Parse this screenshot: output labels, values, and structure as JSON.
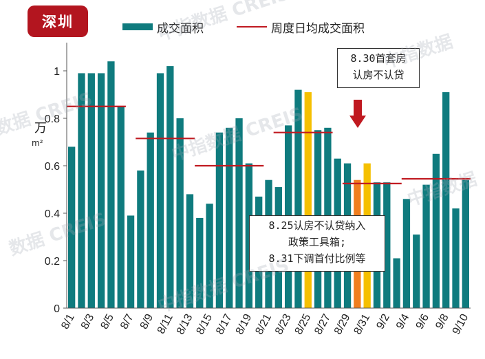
{
  "city_badge": "深圳",
  "legend": {
    "bar_label": "成交面积",
    "line_label": "周度日均成交面积"
  },
  "colors": {
    "bar": "#0f7b7e",
    "highlight": "#f5c000",
    "highlight_alt": "#f07e1e",
    "avg_line": "#c01920",
    "badge": "#b3151f",
    "arrow": "#c01920"
  },
  "callout_top": {
    "lines": [
      "8.30首套房",
      "认房不认贷"
    ]
  },
  "callout_mid": {
    "lines": [
      "8.25认房不认贷纳入",
      "政策工具箱;",
      "8.31下调首付比例等"
    ]
  },
  "watermarks": [
    "中指数据 CREIS",
    "中指数据 CREIS",
    "数据 CREIS",
    "中指数据",
    "中指数据 CREIS",
    "中指数据",
    "数据 CREIS"
  ],
  "chart_data": {
    "type": "bar",
    "ylabel_top": "万",
    "ylabel_unit": "m²",
    "ylim": [
      0,
      1.1
    ],
    "yticks": [
      "0",
      "0.2",
      "0.4",
      "0.6",
      "0.8",
      "1"
    ],
    "categories": [
      "8/1",
      "8/2",
      "8/3",
      "8/4",
      "8/5",
      "8/6",
      "8/7",
      "8/8",
      "8/9",
      "8/10",
      "8/11",
      "8/12",
      "8/13",
      "8/14",
      "8/15",
      "8/16",
      "8/17",
      "8/18",
      "8/19",
      "8/20",
      "8/21",
      "8/22",
      "8/23",
      "8/24",
      "8/25",
      "8/26",
      "8/27",
      "8/28",
      "8/29",
      "8/30",
      "8/31",
      "9/1",
      "9/2",
      "9/3",
      "9/4",
      "9/5",
      "9/6",
      "9/7",
      "9/8",
      "9/9",
      "9/10"
    ],
    "xtick_labels": [
      "8/1",
      "8/3",
      "8/5",
      "8/7",
      "8/9",
      "8/11",
      "8/13",
      "8/15",
      "8/17",
      "8/19",
      "8/21",
      "8/23",
      "8/25",
      "8/27",
      "8/29",
      "8/31",
      "9/2",
      "9/4",
      "9/6",
      "9/8",
      "9/10"
    ],
    "values": [
      0.68,
      0.99,
      0.99,
      0.99,
      1.04,
      0.85,
      0.39,
      0.58,
      0.74,
      0.99,
      1.02,
      0.8,
      0.48,
      0.38,
      0.44,
      0.74,
      0.76,
      0.8,
      0.61,
      0.47,
      0.54,
      0.51,
      0.77,
      0.92,
      0.91,
      0.75,
      0.76,
      0.63,
      0.61,
      0.54,
      0.61,
      0.53,
      0.53,
      0.21,
      0.46,
      0.31,
      0.52,
      0.65,
      0.91,
      0.42,
      0.54
    ],
    "highlight_indices": [
      24,
      30
    ],
    "highlight_alt_indices": [
      29
    ],
    "weekly_avg": [
      {
        "start": "8/1",
        "end": "8/6",
        "value": 0.85
      },
      {
        "start": "8/8",
        "end": "8/13",
        "value": 0.715
      },
      {
        "start": "8/14",
        "end": "8/20",
        "value": 0.6
      },
      {
        "start": "8/22",
        "end": "8/27",
        "value": 0.74
      },
      {
        "start": "8/29",
        "end": "9/3",
        "value": 0.525
      },
      {
        "start": "9/4",
        "end": "9/10",
        "value": 0.545
      }
    ]
  }
}
